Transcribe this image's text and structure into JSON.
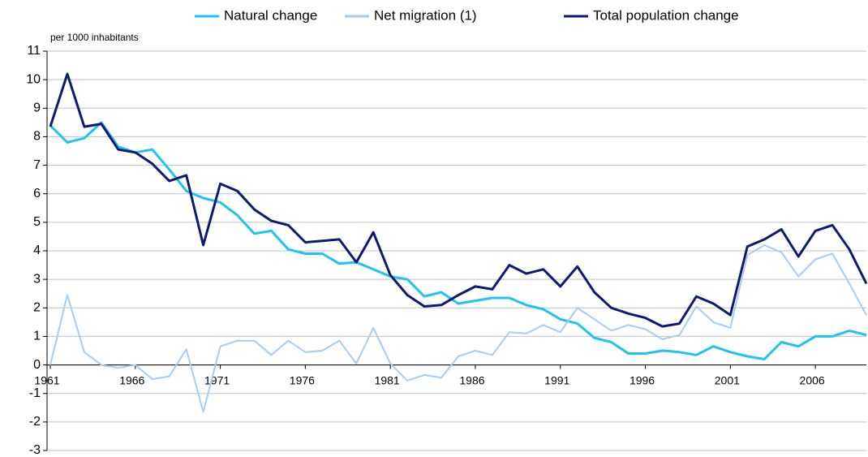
{
  "chart_data": {
    "type": "line",
    "y_label": "per 1000 inhabitants",
    "x": [
      1961,
      1962,
      1963,
      1964,
      1965,
      1966,
      1967,
      1968,
      1969,
      1970,
      1971,
      1972,
      1973,
      1974,
      1975,
      1976,
      1977,
      1978,
      1979,
      1980,
      1981,
      1982,
      1983,
      1984,
      1985,
      1986,
      1987,
      1988,
      1989,
      1990,
      1991,
      1992,
      1993,
      1994,
      1995,
      1996,
      1997,
      1998,
      1999,
      2000,
      2001,
      2002,
      2003,
      2004,
      2005,
      2006,
      2007,
      2008,
      2009
    ],
    "series": [
      {
        "name": "Natural change",
        "color": "#1ec3f0",
        "width": 3,
        "values": [
          8.4,
          7.8,
          7.95,
          8.5,
          7.65,
          7.45,
          7.55,
          6.85,
          6.1,
          5.85,
          5.7,
          5.25,
          4.6,
          4.7,
          4.05,
          3.9,
          3.9,
          3.55,
          3.6,
          3.35,
          3.1,
          3.0,
          2.4,
          2.55,
          2.15,
          2.25,
          2.35,
          2.35,
          2.1,
          1.95,
          1.6,
          1.45,
          0.95,
          0.8,
          0.4,
          0.4,
          0.5,
          0.45,
          0.35,
          0.65,
          0.45,
          0.3,
          0.2,
          0.8,
          0.65,
          1.0,
          1.0,
          1.2,
          1.05
        ]
      },
      {
        "name": "Net migration (1)",
        "color": "#a6cdf0",
        "width": 2,
        "values": [
          0.0,
          2.45,
          0.45,
          0.0,
          -0.1,
          0.0,
          -0.5,
          -0.4,
          0.55,
          -1.65,
          0.65,
          0.85,
          0.85,
          0.35,
          0.85,
          0.45,
          0.5,
          0.85,
          0.05,
          1.3,
          0.05,
          -0.55,
          -0.35,
          -0.45,
          0.3,
          0.5,
          0.35,
          1.15,
          1.1,
          1.4,
          1.15,
          2.0,
          1.6,
          1.2,
          1.4,
          1.25,
          0.9,
          1.05,
          2.05,
          1.5,
          1.3,
          3.85,
          4.2,
          3.95,
          3.1,
          3.7,
          3.9,
          2.85,
          1.75
        ]
      },
      {
        "name": "Total population change",
        "color": "#0d1a73",
        "width": 3,
        "values": [
          8.35,
          10.2,
          8.35,
          8.45,
          7.55,
          7.45,
          7.05,
          6.45,
          6.65,
          4.2,
          6.35,
          6.1,
          5.45,
          5.05,
          4.9,
          4.3,
          4.35,
          4.4,
          3.6,
          4.65,
          3.15,
          2.45,
          2.05,
          2.1,
          2.45,
          2.75,
          2.65,
          3.5,
          3.2,
          3.35,
          2.75,
          3.45,
          2.55,
          2.0,
          1.8,
          1.65,
          1.35,
          1.45,
          2.4,
          2.15,
          1.75,
          4.15,
          4.4,
          4.75,
          3.8,
          4.7,
          4.9,
          4.05,
          2.85
        ]
      }
    ],
    "xlim": [
      1961,
      2009
    ],
    "xticks": [
      1961,
      1966,
      1971,
      1976,
      1981,
      1986,
      1991,
      1996,
      2001,
      2006
    ],
    "ylim": [
      -3,
      11
    ],
    "yticks": [
      -3,
      -2,
      -1,
      0,
      1,
      2,
      3,
      4,
      5,
      6,
      7,
      8,
      9,
      10,
      11
    ],
    "grid": true
  }
}
